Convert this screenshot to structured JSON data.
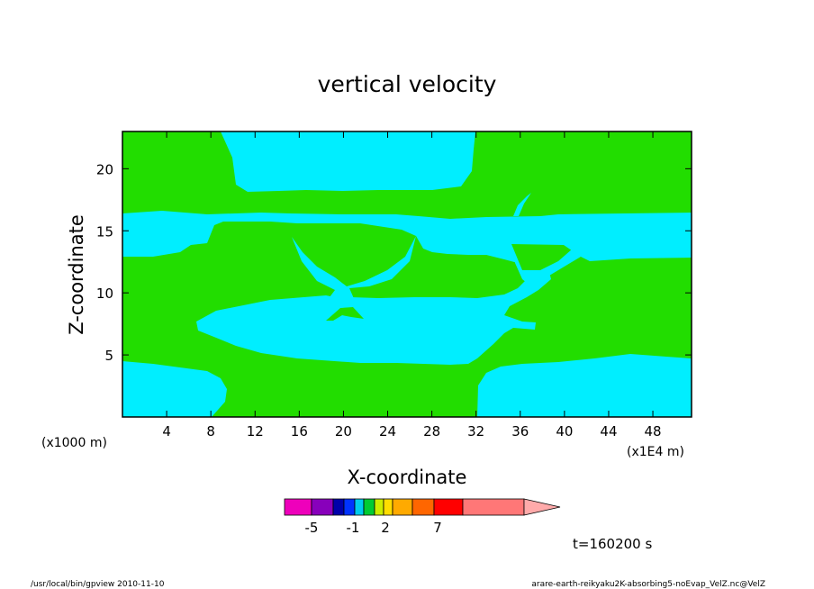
{
  "chart_data": {
    "type": "heatmap",
    "title": "vertical velocity",
    "xlabel": "X-coordinate",
    "ylabel": "Z-coordinate",
    "x_unit_left": "(x1000 m)",
    "x_unit_right": "(x1E4 m)",
    "xlim": [
      0,
      51.5
    ],
    "ylim": [
      0,
      23
    ],
    "x_ticks": [
      4,
      8,
      12,
      16,
      20,
      24,
      28,
      32,
      36,
      40,
      44,
      48
    ],
    "y_ticks": [
      5,
      10,
      15,
      20
    ],
    "region_colors": {
      "background": "#22dd00",
      "shaded": "#00eeff"
    },
    "time_label": "t=160200 s",
    "colorbar": {
      "colors": [
        "#ee00bb",
        "#8800bb",
        "#0000aa",
        "#0033ff",
        "#00ccee",
        "#00cc33",
        "#ccee00",
        "#ffdd00",
        "#ffaa00",
        "#ff6600",
        "#ff0000",
        "#ff7777",
        "#ffaaaa"
      ],
      "tick_labels": [
        "-5",
        "-1",
        "2",
        "7"
      ]
    }
  },
  "footer": {
    "left": "/usr/local/bin/gpview   2010-11-10",
    "right": "arare-earth-reikyaku2K-absorbing5-noEvap_VelZ.nc@VelZ"
  }
}
